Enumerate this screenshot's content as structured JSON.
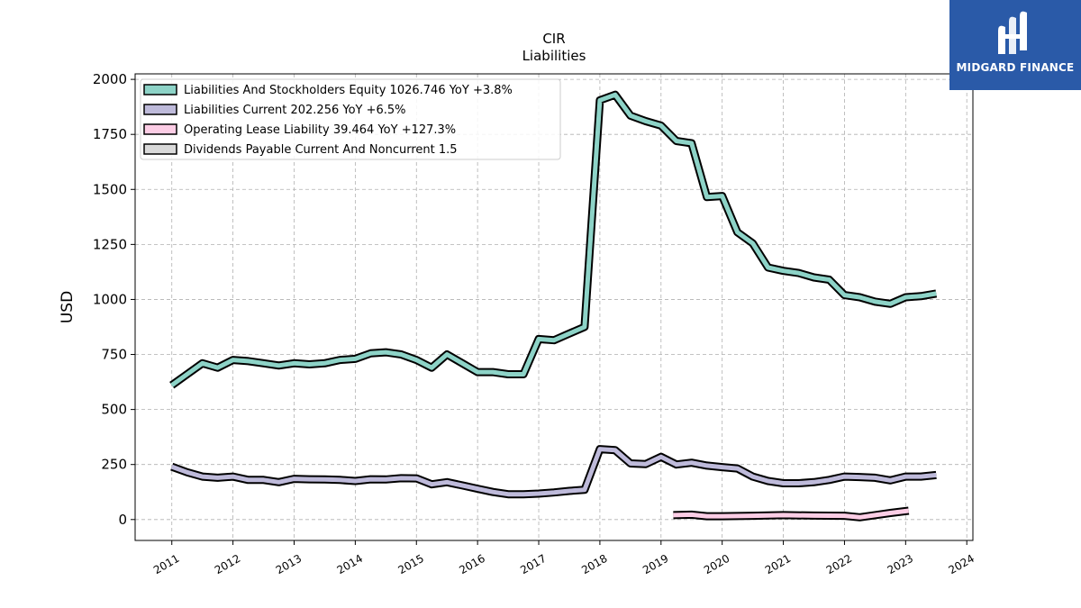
{
  "chart_data": {
    "type": "line",
    "title": "CIR",
    "subtitle": "Liabilities",
    "ylabel": "USD",
    "xlabel": "",
    "ylim": [
      -95,
      2025
    ],
    "xlim": [
      2010.4,
      2024.1
    ],
    "yticks": [
      0,
      250,
      500,
      750,
      1000,
      1250,
      1500,
      1750,
      2000
    ],
    "xticks": [
      2011,
      2012,
      2013,
      2014,
      2015,
      2016,
      2017,
      2018,
      2019,
      2020,
      2021,
      2022,
      2023,
      2024
    ],
    "grid": true,
    "legend_position": "top-left",
    "series": [
      {
        "name": "Liabilities And Stockholders Equity",
        "legend_label": "Liabilities And Stockholders Equity  1026.746 YoY +3.8%",
        "color": "#8dd3c7",
        "x": [
          2011.0,
          2011.25,
          2011.5,
          2011.75,
          2012.0,
          2012.25,
          2012.5,
          2012.75,
          2013.0,
          2013.25,
          2013.5,
          2013.75,
          2014.0,
          2014.25,
          2014.5,
          2014.75,
          2015.0,
          2015.25,
          2015.5,
          2015.75,
          2016.0,
          2016.25,
          2016.5,
          2016.75,
          2017.0,
          2017.25,
          2017.5,
          2017.75,
          2018.0,
          2018.25,
          2018.5,
          2018.75,
          2019.0,
          2019.25,
          2019.5,
          2019.75,
          2020.0,
          2020.25,
          2020.5,
          2020.75,
          2021.0,
          2021.25,
          2021.5,
          2021.75,
          2022.0,
          2022.25,
          2022.5,
          2022.75,
          2023.0,
          2023.25,
          2023.5
        ],
        "values": [
          610,
          660,
          710,
          690,
          725,
          720,
          710,
          700,
          710,
          705,
          710,
          725,
          730,
          755,
          760,
          750,
          725,
          690,
          750,
          710,
          670,
          670,
          660,
          660,
          820,
          815,
          845,
          875,
          1905,
          1930,
          1835,
          1810,
          1790,
          1720,
          1710,
          1465,
          1470,
          1305,
          1255,
          1145,
          1130,
          1120,
          1100,
          1090,
          1020,
          1010,
          990,
          980,
          1010,
          1015,
          1027
        ]
      },
      {
        "name": "Liabilities Current",
        "legend_label": "Liabilities Current  202.256 YoY +6.5%",
        "color": "#bebada",
        "x": [
          2011.0,
          2011.25,
          2011.5,
          2011.75,
          2012.0,
          2012.25,
          2012.5,
          2012.75,
          2013.0,
          2013.25,
          2013.5,
          2013.75,
          2014.0,
          2014.25,
          2014.5,
          2014.75,
          2015.0,
          2015.25,
          2015.5,
          2015.75,
          2016.0,
          2016.25,
          2016.5,
          2016.75,
          2017.0,
          2017.25,
          2017.5,
          2017.75,
          2018.0,
          2018.25,
          2018.5,
          2018.75,
          2019.0,
          2019.25,
          2019.5,
          2019.75,
          2020.0,
          2020.25,
          2020.5,
          2020.75,
          2021.0,
          2021.25,
          2021.5,
          2021.75,
          2022.0,
          2022.25,
          2022.5,
          2022.75,
          2023.0,
          2023.25,
          2023.5
        ],
        "values": [
          240,
          215,
          195,
          190,
          195,
          180,
          180,
          170,
          185,
          183,
          182,
          180,
          175,
          183,
          182,
          188,
          187,
          160,
          170,
          155,
          140,
          125,
          115,
          115,
          118,
          123,
          130,
          135,
          320,
          315,
          255,
          252,
          285,
          250,
          258,
          245,
          238,
          232,
          195,
          175,
          165,
          165,
          170,
          180,
          195,
          193,
          190,
          178,
          195,
          195,
          202
        ]
      },
      {
        "name": "Operating Lease Liability",
        "legend_label": "Operating Lease Liability  39.464 YoY +127.3%",
        "color": "#fccde5",
        "x": [
          2019.2,
          2019.5,
          2019.75,
          2020.0,
          2020.5,
          2021.0,
          2021.5,
          2022.0,
          2022.25,
          2022.5,
          2022.75,
          2023.05
        ],
        "values": [
          20,
          22,
          15,
          15,
          17,
          20,
          18,
          17,
          10,
          20,
          30,
          40
        ]
      },
      {
        "name": "Dividends Payable Current And Noncurrent",
        "legend_label": "Dividends Payable Current And Noncurrent  1.5",
        "color": "#d9d9d9",
        "x": [],
        "values": []
      }
    ]
  },
  "logo": {
    "text": "MIDGARD FINANCE",
    "background": "#2a5aa8"
  }
}
